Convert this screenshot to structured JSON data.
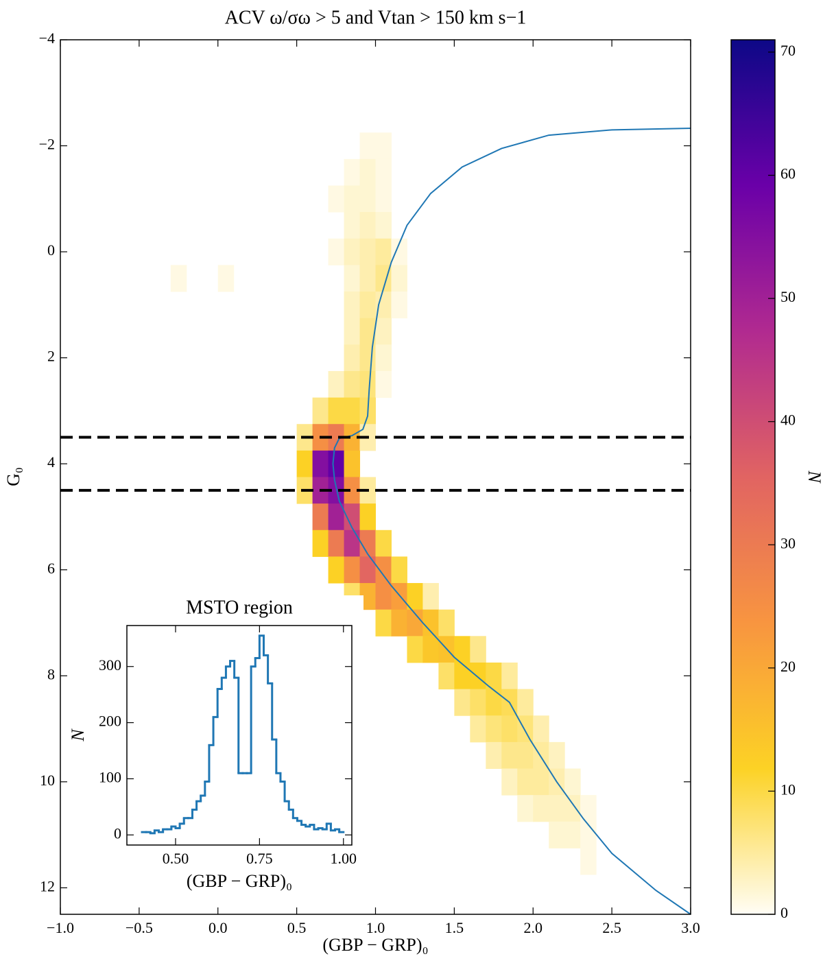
{
  "chart_data": [
    {
      "type": "histogram2d",
      "title": "ACV ω/σω > 5 and Vtan > 150 km s−1",
      "xlabel": "(GBP − GRP)₀",
      "ylabel": "G₀",
      "xlim": [
        -1,
        3
      ],
      "ylim": [
        -4,
        12.5
      ],
      "invert_y": true,
      "xticks": [
        {
          "value": -1,
          "label": "−1.0"
        },
        {
          "value": -0.5,
          "label": "−0.5"
        },
        {
          "value": 0,
          "label": "0.0"
        },
        {
          "value": 0.5,
          "label": "0.5"
        },
        {
          "value": 1,
          "label": "1.0"
        },
        {
          "value": 1.5,
          "label": "1.5"
        },
        {
          "value": 2,
          "label": "2.0"
        },
        {
          "value": 2.5,
          "label": "2.5"
        },
        {
          "value": 3,
          "label": "3.0"
        }
      ],
      "yticks": [
        {
          "value": -4,
          "label": "−4"
        },
        {
          "value": -2,
          "label": "−2"
        },
        0,
        2,
        4,
        6,
        8,
        10,
        12
      ],
      "cells": [
        [
          0.95,
          -2,
          1
        ],
        [
          1.05,
          -2,
          1
        ],
        [
          0.85,
          -1.5,
          1
        ],
        [
          0.95,
          -1.5,
          2
        ],
        [
          1.05,
          -1.5,
          1
        ],
        [
          0.75,
          -1,
          1
        ],
        [
          0.85,
          -1,
          2
        ],
        [
          0.95,
          -1,
          2
        ],
        [
          1.05,
          -1,
          1
        ],
        [
          0.85,
          -0.5,
          2
        ],
        [
          0.95,
          -0.5,
          3
        ],
        [
          1.05,
          -0.5,
          2
        ],
        [
          0.75,
          0,
          1
        ],
        [
          0.85,
          0,
          3
        ],
        [
          0.95,
          0,
          4
        ],
        [
          1.05,
          0,
          5
        ],
        [
          1.15,
          0,
          1
        ],
        [
          -0.25,
          0.5,
          1
        ],
        [
          0.05,
          0.5,
          1
        ],
        [
          0.85,
          0.5,
          2
        ],
        [
          0.95,
          0.5,
          4
        ],
        [
          1.05,
          0.5,
          6
        ],
        [
          1.15,
          0.5,
          2
        ],
        [
          0.85,
          1,
          3
        ],
        [
          0.95,
          1,
          5
        ],
        [
          1.05,
          1,
          4
        ],
        [
          1.15,
          1,
          1
        ],
        [
          0.85,
          1.5,
          3
        ],
        [
          0.95,
          1.5,
          6
        ],
        [
          1.05,
          1.5,
          3
        ],
        [
          0.85,
          2,
          4
        ],
        [
          0.95,
          2,
          6
        ],
        [
          1.05,
          2,
          2
        ],
        [
          0.75,
          2.5,
          3
        ],
        [
          0.85,
          2.5,
          6
        ],
        [
          0.95,
          2.5,
          7
        ],
        [
          1.05,
          2.5,
          1
        ],
        [
          0.65,
          3,
          6
        ],
        [
          0.75,
          3,
          10
        ],
        [
          0.85,
          3,
          10
        ],
        [
          0.95,
          3,
          8
        ],
        [
          0.55,
          3.5,
          6
        ],
        [
          0.65,
          3.5,
          25
        ],
        [
          0.75,
          3.5,
          30
        ],
        [
          0.85,
          3.5,
          18
        ],
        [
          0.95,
          3.5,
          4
        ],
        [
          0.55,
          4,
          12
        ],
        [
          0.65,
          4,
          55
        ],
        [
          0.75,
          4,
          60
        ],
        [
          0.85,
          4,
          15
        ],
        [
          0.55,
          4.5,
          8
        ],
        [
          0.65,
          4.5,
          50
        ],
        [
          0.75,
          4.5,
          55
        ],
        [
          0.85,
          4.5,
          25
        ],
        [
          0.95,
          4.5,
          5
        ],
        [
          0.65,
          5,
          30
        ],
        [
          0.75,
          5,
          50
        ],
        [
          0.85,
          5,
          40
        ],
        [
          0.95,
          5,
          12
        ],
        [
          0.65,
          5.5,
          12
        ],
        [
          0.75,
          5.5,
          30
        ],
        [
          0.85,
          5.5,
          45
        ],
        [
          0.95,
          5.5,
          30
        ],
        [
          1.05,
          5.5,
          10
        ],
        [
          0.75,
          6,
          12
        ],
        [
          0.85,
          6,
          25
        ],
        [
          0.95,
          6,
          35
        ],
        [
          1.05,
          6,
          25
        ],
        [
          1.15,
          6,
          10
        ],
        [
          0.85,
          6.5,
          8
        ],
        [
          0.95,
          6.5,
          18
        ],
        [
          1.05,
          6.5,
          25
        ],
        [
          1.15,
          6.5,
          22
        ],
        [
          1.25,
          6.5,
          12
        ],
        [
          1.35,
          6.5,
          4
        ],
        [
          1.05,
          7,
          10
        ],
        [
          1.15,
          7,
          18
        ],
        [
          1.25,
          7,
          20
        ],
        [
          1.35,
          7,
          15
        ],
        [
          1.45,
          7,
          8
        ],
        [
          1.25,
          7.5,
          10
        ],
        [
          1.35,
          7.5,
          14
        ],
        [
          1.45,
          7.5,
          15
        ],
        [
          1.55,
          7.5,
          12
        ],
        [
          1.65,
          7.5,
          6
        ],
        [
          1.45,
          8,
          8
        ],
        [
          1.55,
          8,
          12
        ],
        [
          1.65,
          8,
          12
        ],
        [
          1.75,
          8,
          10
        ],
        [
          1.85,
          8,
          5
        ],
        [
          1.55,
          8.5,
          6
        ],
        [
          1.65,
          8.5,
          8
        ],
        [
          1.75,
          8.5,
          10
        ],
        [
          1.85,
          8.5,
          9
        ],
        [
          1.95,
          8.5,
          5
        ],
        [
          1.65,
          9,
          5
        ],
        [
          1.75,
          9,
          7
        ],
        [
          1.85,
          9,
          8
        ],
        [
          1.95,
          9,
          7
        ],
        [
          2.05,
          9,
          4
        ],
        [
          1.75,
          9.5,
          4
        ],
        [
          1.85,
          9.5,
          6
        ],
        [
          1.95,
          9.5,
          6
        ],
        [
          2.05,
          9.5,
          5
        ],
        [
          2.15,
          9.5,
          3
        ],
        [
          1.85,
          10,
          3
        ],
        [
          1.95,
          10,
          5
        ],
        [
          2.05,
          10,
          5
        ],
        [
          2.15,
          10,
          4
        ],
        [
          2.25,
          10,
          2
        ],
        [
          1.95,
          10.5,
          2
        ],
        [
          2.05,
          10.5,
          3
        ],
        [
          2.15,
          10.5,
          3
        ],
        [
          2.25,
          10.5,
          3
        ],
        [
          2.35,
          10.5,
          1
        ],
        [
          2.15,
          11,
          2
        ],
        [
          2.25,
          11,
          2
        ],
        [
          2.35,
          11,
          1
        ],
        [
          2.35,
          11.5,
          1
        ]
      ],
      "isochrone": {
        "color": "#1f77b4",
        "x": [
          3.0,
          2.78,
          2.5,
          2.32,
          2.15,
          1.98,
          1.85,
          1.72,
          1.5,
          1.3,
          1.1,
          0.95,
          0.85,
          0.77,
          0.74,
          0.73,
          0.74,
          0.77,
          0.85,
          0.92,
          0.95,
          0.96,
          0.98,
          1.02,
          1.1,
          1.2,
          1.35,
          1.55,
          1.8,
          2.1,
          2.5,
          3.0
        ],
        "y": [
          12.5,
          12.05,
          11.35,
          10.7,
          10.0,
          9.2,
          8.5,
          8.2,
          7.65,
          7.0,
          6.3,
          5.7,
          5.2,
          4.7,
          4.3,
          4.0,
          3.7,
          3.52,
          3.47,
          3.35,
          3.1,
          2.6,
          1.8,
          1.0,
          0.2,
          -0.5,
          -1.1,
          -1.6,
          -1.95,
          -2.2,
          -2.3,
          -2.33
        ]
      },
      "hlines": [
        3.5,
        4.5
      ],
      "colorbar": {
        "label": "N",
        "lim": [
          0,
          71
        ],
        "ticks": [
          0,
          10,
          20,
          30,
          40,
          50,
          60,
          70
        ],
        "colormap": [
          "#fffdf5",
          "#fcd225",
          "#f89540",
          "#e16462",
          "#b12a90",
          "#6a00a8",
          "#0d0887"
        ]
      }
    },
    {
      "type": "histogram",
      "title": "MSTO region",
      "xlabel": "(GBP − GRP)₀",
      "ylabel": "N",
      "color": "#1f77b4",
      "xlim": [
        0.355,
        1.025
      ],
      "ylim": [
        -18,
        373
      ],
      "xticks": [
        {
          "value": 0.5,
          "label": "0.50"
        },
        {
          "value": 0.75,
          "label": "0.75"
        },
        {
          "value": 1,
          "label": "1.00"
        }
      ],
      "yticks": [
        0,
        100,
        200,
        300
      ],
      "bins": [
        0.4,
        0.4125,
        0.425,
        0.4375,
        0.45,
        0.4625,
        0.475,
        0.4875,
        0.5,
        0.5125,
        0.525,
        0.5375,
        0.55,
        0.5625,
        0.575,
        0.5875,
        0.6,
        0.6125,
        0.625,
        0.6375,
        0.65,
        0.6625,
        0.675,
        0.6875,
        0.7,
        0.7125,
        0.725,
        0.7375,
        0.75,
        0.7625,
        0.775,
        0.7875,
        0.8,
        0.8125,
        0.825,
        0.8375,
        0.85,
        0.8625,
        0.875,
        0.8875,
        0.9,
        0.9125,
        0.925,
        0.9375,
        0.95,
        0.9625,
        0.975,
        0.9875,
        1.0
      ],
      "values": [
        5,
        5,
        3,
        8,
        5,
        10,
        10,
        15,
        12,
        20,
        30,
        30,
        45,
        60,
        70,
        95,
        160,
        210,
        260,
        280,
        300,
        310,
        280,
        110,
        110,
        110,
        300,
        315,
        355,
        320,
        270,
        170,
        110,
        95,
        60,
        45,
        30,
        25,
        18,
        15,
        18,
        10,
        12,
        10,
        20,
        8,
        10,
        5
      ]
    }
  ]
}
